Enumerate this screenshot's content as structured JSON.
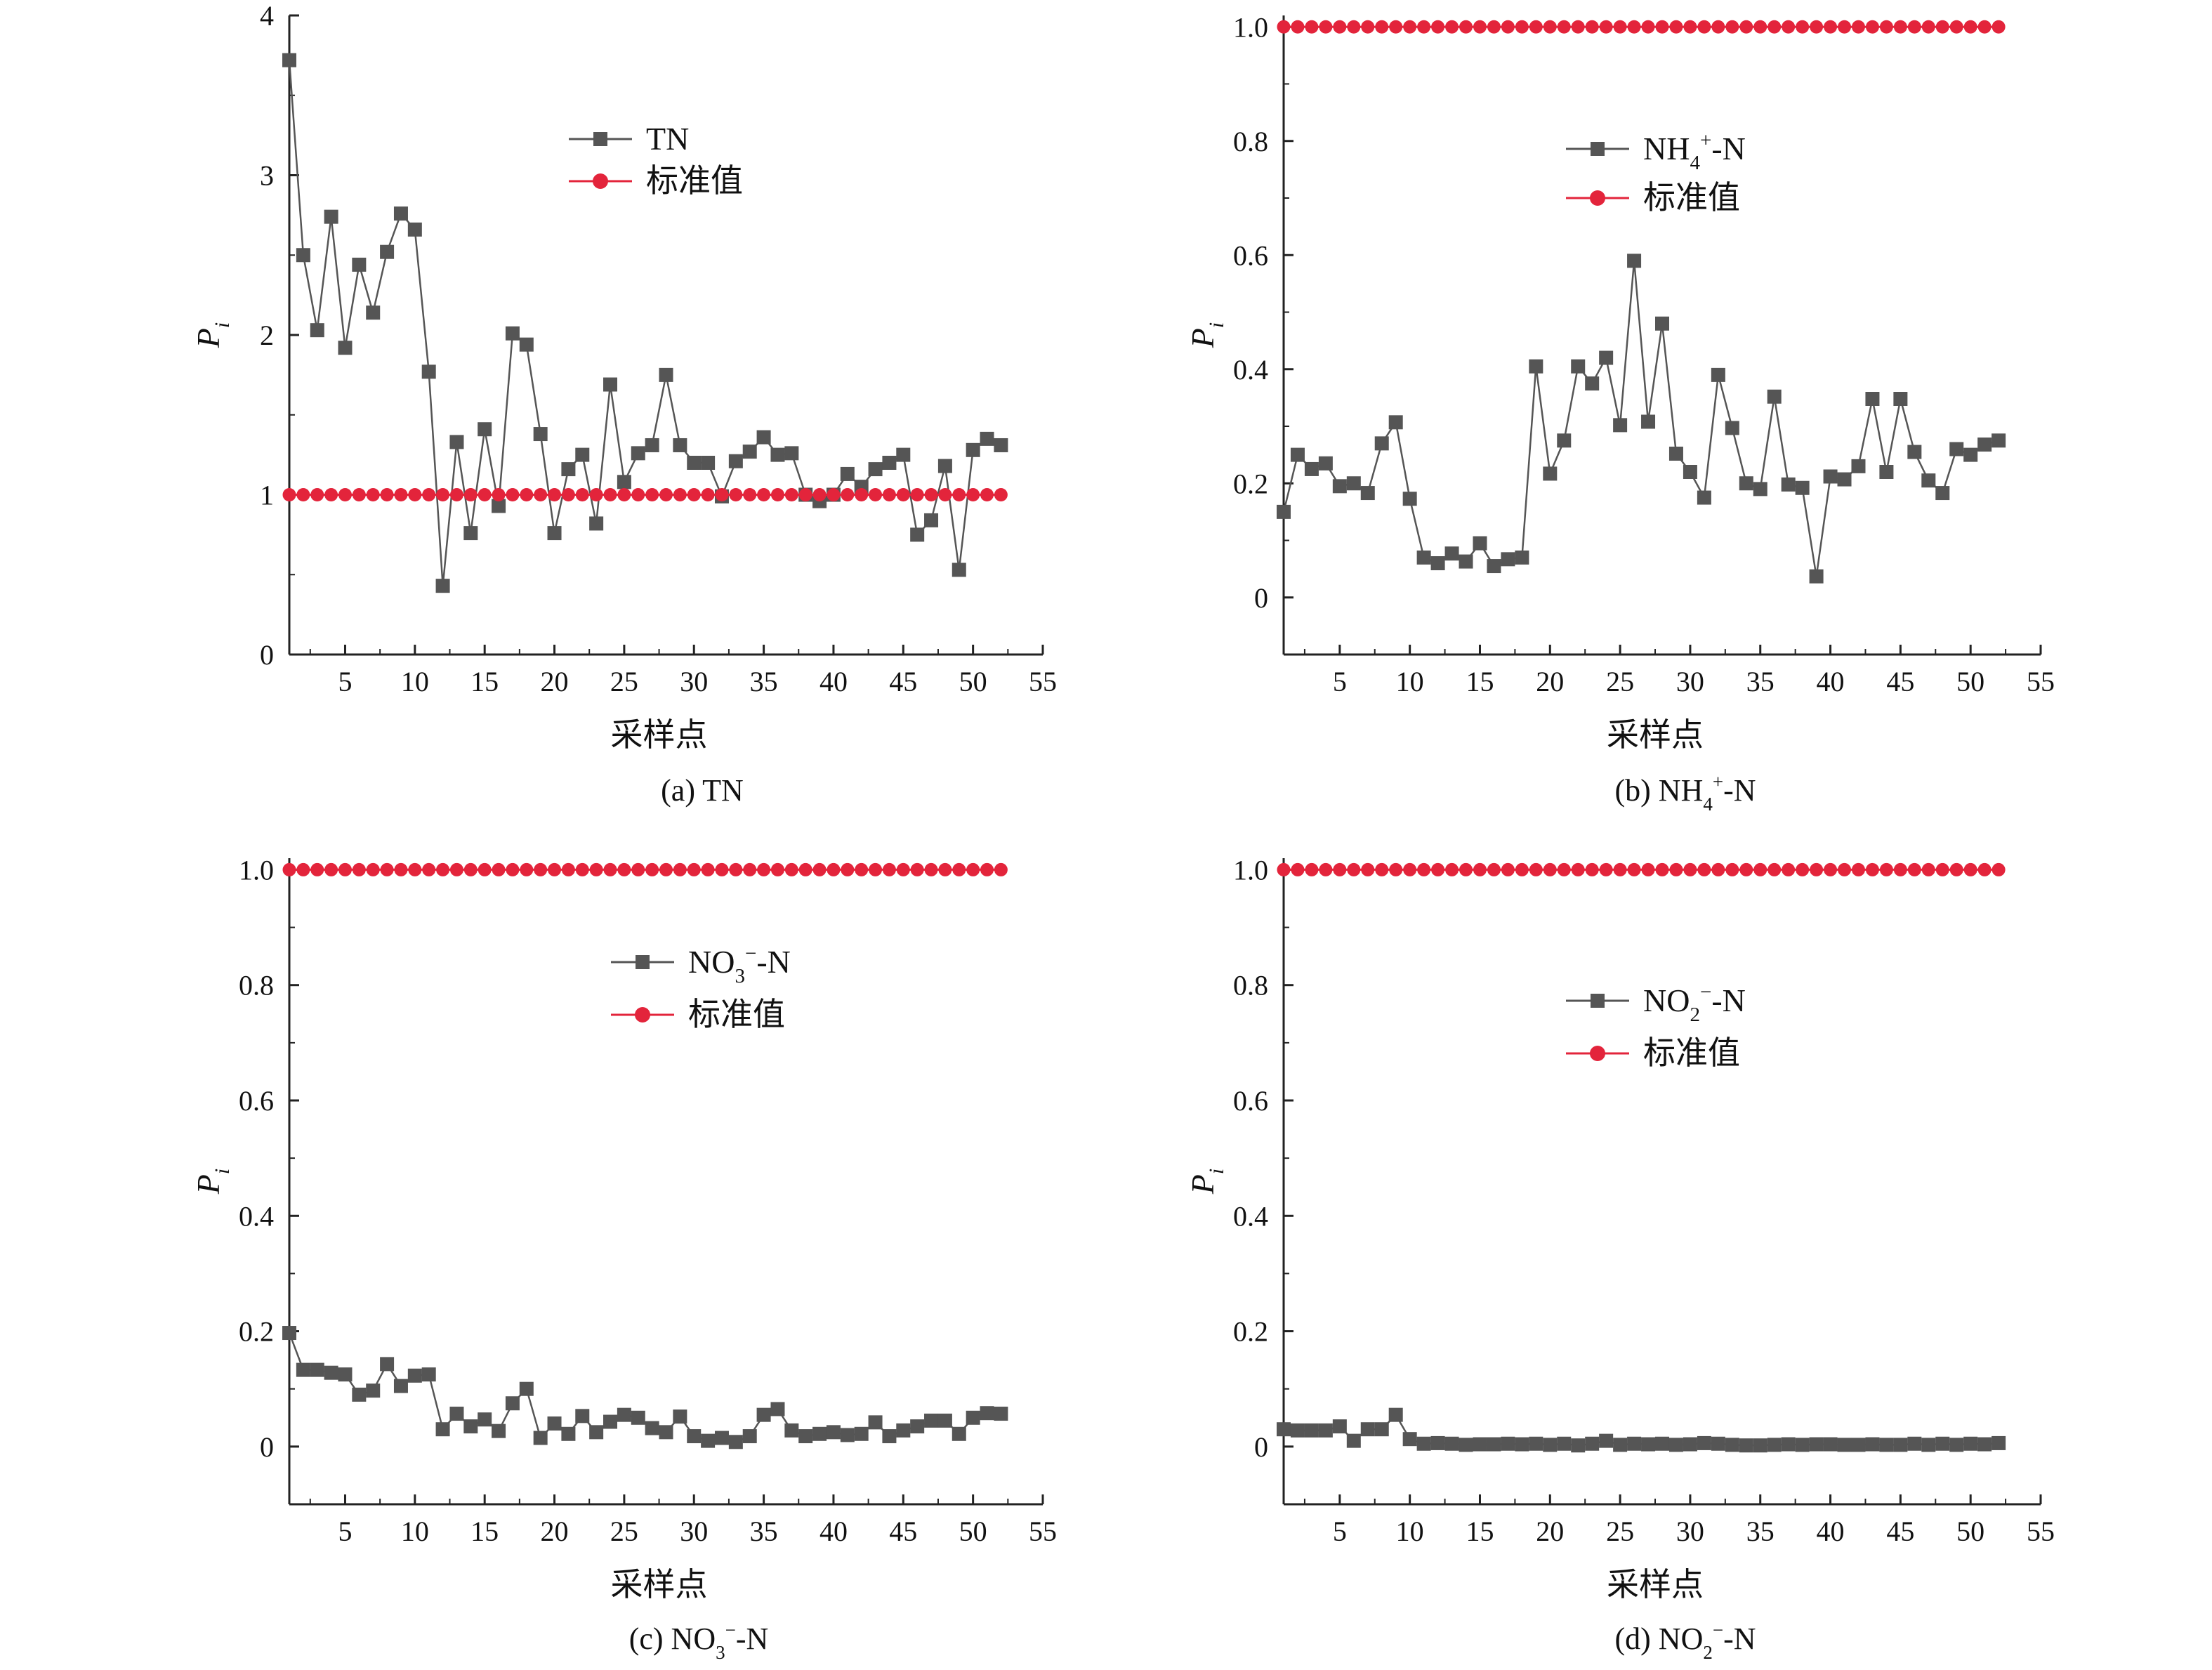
{
  "figure": {
    "series_colors": {
      "measured": "#555555",
      "standard": "#e3243b"
    }
  },
  "chart_data": [
    {
      "type": "line",
      "panel": "a",
      "caption": "(a) TN",
      "xlabel": "采样点",
      "ylabel": "P",
      "ylabel_sub": "i",
      "xlim": [
        1,
        55
      ],
      "ylim": [
        0,
        4
      ],
      "xticks": [
        5,
        10,
        15,
        20,
        25,
        30,
        35,
        40,
        45,
        50,
        55
      ],
      "yticks": [
        0,
        1,
        2,
        3,
        4
      ],
      "ytick_labels": [
        "0",
        "1",
        "2",
        "3",
        "4"
      ],
      "legend": {
        "placement": "top-center"
      },
      "series": [
        {
          "name": "TN",
          "name_parts": [
            "TN"
          ],
          "marker": "square",
          "x": [
            1,
            2,
            3,
            4,
            5,
            6,
            7,
            8,
            9,
            10,
            11,
            12,
            13,
            14,
            15,
            16,
            17,
            18,
            19,
            20,
            21,
            22,
            23,
            24,
            25,
            26,
            27,
            28,
            29,
            30,
            31,
            32,
            33,
            34,
            35,
            36,
            37,
            38,
            39,
            40,
            41,
            42,
            43,
            44,
            45,
            46,
            47,
            48,
            49,
            50,
            51,
            52
          ],
          "values": [
            3.72,
            2.5,
            2.03,
            2.74,
            1.92,
            2.44,
            2.14,
            2.52,
            2.76,
            2.66,
            1.77,
            0.43,
            1.33,
            0.76,
            1.41,
            0.93,
            2.01,
            1.94,
            1.38,
            0.76,
            1.16,
            1.25,
            0.82,
            1.69,
            1.08,
            1.26,
            1.31,
            1.75,
            1.31,
            1.2,
            1.2,
            0.99,
            1.21,
            1.27,
            1.36,
            1.25,
            1.26,
            1.0,
            0.96,
            1.0,
            1.13,
            1.05,
            1.16,
            1.2,
            1.25,
            0.75,
            0.84,
            1.18,
            0.53,
            1.28,
            1.35,
            1.31
          ]
        },
        {
          "name": "标准值",
          "name_parts": [
            "标准值"
          ],
          "marker": "circle",
          "x": [
            1,
            2,
            3,
            4,
            5,
            6,
            7,
            8,
            9,
            10,
            11,
            12,
            13,
            14,
            15,
            16,
            17,
            18,
            19,
            20,
            21,
            22,
            23,
            24,
            25,
            26,
            27,
            28,
            29,
            30,
            31,
            32,
            33,
            34,
            35,
            36,
            37,
            38,
            39,
            40,
            41,
            42,
            43,
            44,
            45,
            46,
            47,
            48,
            49,
            50,
            51,
            52
          ],
          "values": [
            1,
            1,
            1,
            1,
            1,
            1,
            1,
            1,
            1,
            1,
            1,
            1,
            1,
            1,
            1,
            1,
            1,
            1,
            1,
            1,
            1,
            1,
            1,
            1,
            1,
            1,
            1,
            1,
            1,
            1,
            1,
            1,
            1,
            1,
            1,
            1,
            1,
            1,
            1,
            1,
            1,
            1,
            1,
            1,
            1,
            1,
            1,
            1,
            1,
            1,
            1,
            1
          ]
        }
      ]
    },
    {
      "type": "line",
      "panel": "b",
      "caption": "(b) NH4+-N",
      "caption_parts": [
        "(b) NH",
        "4",
        "+",
        "-N"
      ],
      "xlabel": "采样点",
      "ylabel": "P",
      "ylabel_sub": "i",
      "xlim": [
        1,
        55
      ],
      "ylim": [
        -0.1,
        1.02
      ],
      "xticks": [
        5,
        10,
        15,
        20,
        25,
        30,
        35,
        40,
        45,
        50,
        55
      ],
      "yticks": [
        0,
        0.2,
        0.4,
        0.6,
        0.8,
        1.0
      ],
      "ytick_labels": [
        "0",
        "0.2",
        "0.4",
        "0.6",
        "0.8",
        "1.0"
      ],
      "legend": {
        "placement": "top-center"
      },
      "series": [
        {
          "name": "NH4+-N",
          "name_parts": [
            "NH",
            "4",
            "+",
            "-N"
          ],
          "marker": "square",
          "x": [
            1,
            2,
            3,
            4,
            5,
            6,
            7,
            8,
            9,
            10,
            11,
            12,
            13,
            14,
            15,
            16,
            17,
            18,
            19,
            20,
            21,
            22,
            23,
            24,
            25,
            26,
            27,
            28,
            29,
            30,
            31,
            32,
            33,
            34,
            35,
            36,
            37,
            38,
            39,
            40,
            41,
            42,
            43,
            44,
            45,
            46,
            47,
            48,
            49,
            50,
            51,
            52
          ],
          "values": [
            0.15,
            0.25,
            0.225,
            0.235,
            0.195,
            0.2,
            0.183,
            0.27,
            0.307,
            0.173,
            0.07,
            0.06,
            0.077,
            0.063,
            0.095,
            0.055,
            0.067,
            0.07,
            0.405,
            0.217,
            0.275,
            0.405,
            0.375,
            0.42,
            0.302,
            0.59,
            0.308,
            0.48,
            0.252,
            0.22,
            0.175,
            0.39,
            0.297,
            0.2,
            0.19,
            0.352,
            0.198,
            0.192,
            0.037,
            0.212,
            0.207,
            0.23,
            0.348,
            0.22,
            0.348,
            0.255,
            0.205,
            0.183,
            0.26,
            0.25,
            0.268,
            0.275
          ]
        },
        {
          "name": "标准值",
          "name_parts": [
            "标准值"
          ],
          "marker": "circle",
          "x": [
            1,
            2,
            3,
            4,
            5,
            6,
            7,
            8,
            9,
            10,
            11,
            12,
            13,
            14,
            15,
            16,
            17,
            18,
            19,
            20,
            21,
            22,
            23,
            24,
            25,
            26,
            27,
            28,
            29,
            30,
            31,
            32,
            33,
            34,
            35,
            36,
            37,
            38,
            39,
            40,
            41,
            42,
            43,
            44,
            45,
            46,
            47,
            48,
            49,
            50,
            51,
            52
          ],
          "values": [
            1,
            1,
            1,
            1,
            1,
            1,
            1,
            1,
            1,
            1,
            1,
            1,
            1,
            1,
            1,
            1,
            1,
            1,
            1,
            1,
            1,
            1,
            1,
            1,
            1,
            1,
            1,
            1,
            1,
            1,
            1,
            1,
            1,
            1,
            1,
            1,
            1,
            1,
            1,
            1,
            1,
            1,
            1,
            1,
            1,
            1,
            1,
            1,
            1,
            1,
            1,
            1
          ]
        }
      ]
    },
    {
      "type": "line",
      "panel": "c",
      "caption": "(c) NO3−-N",
      "caption_parts": [
        "(c) NO",
        "3",
        "−",
        "-N"
      ],
      "xlabel": "采样点",
      "ylabel": "P",
      "ylabel_sub": "i",
      "xlim": [
        1,
        55
      ],
      "ylim": [
        -0.1,
        1.02
      ],
      "xticks": [
        5,
        10,
        15,
        20,
        25,
        30,
        35,
        40,
        45,
        50,
        55
      ],
      "yticks": [
        0,
        0.2,
        0.4,
        0.6,
        0.8,
        1.0
      ],
      "ytick_labels": [
        "0",
        "0.2",
        "0.4",
        "0.6",
        "0.8",
        "1.0"
      ],
      "legend": {
        "placement": "top-center"
      },
      "series": [
        {
          "name": "NO3−-N",
          "name_parts": [
            "NO",
            "3",
            "−",
            "-N"
          ],
          "marker": "square",
          "x": [
            1,
            2,
            3,
            4,
            5,
            6,
            7,
            8,
            9,
            10,
            11,
            12,
            13,
            14,
            15,
            16,
            17,
            18,
            19,
            20,
            21,
            22,
            23,
            24,
            25,
            26,
            27,
            28,
            29,
            30,
            31,
            32,
            33,
            34,
            35,
            36,
            37,
            38,
            39,
            40,
            41,
            42,
            43,
            44,
            45,
            46,
            47,
            48,
            49,
            50,
            51,
            52
          ],
          "values": [
            0.197,
            0.133,
            0.133,
            0.128,
            0.125,
            0.09,
            0.097,
            0.143,
            0.105,
            0.123,
            0.125,
            0.03,
            0.057,
            0.035,
            0.047,
            0.027,
            0.075,
            0.1,
            0.015,
            0.04,
            0.022,
            0.053,
            0.025,
            0.043,
            0.055,
            0.05,
            0.032,
            0.025,
            0.052,
            0.018,
            0.01,
            0.015,
            0.008,
            0.018,
            0.055,
            0.065,
            0.028,
            0.018,
            0.022,
            0.025,
            0.02,
            0.022,
            0.042,
            0.018,
            0.028,
            0.035,
            0.045,
            0.045,
            0.022,
            0.05,
            0.058,
            0.057
          ]
        },
        {
          "name": "标准值",
          "name_parts": [
            "标准值"
          ],
          "marker": "circle",
          "x": [
            1,
            2,
            3,
            4,
            5,
            6,
            7,
            8,
            9,
            10,
            11,
            12,
            13,
            14,
            15,
            16,
            17,
            18,
            19,
            20,
            21,
            22,
            23,
            24,
            25,
            26,
            27,
            28,
            29,
            30,
            31,
            32,
            33,
            34,
            35,
            36,
            37,
            38,
            39,
            40,
            41,
            42,
            43,
            44,
            45,
            46,
            47,
            48,
            49,
            50,
            51,
            52
          ],
          "values": [
            1,
            1,
            1,
            1,
            1,
            1,
            1,
            1,
            1,
            1,
            1,
            1,
            1,
            1,
            1,
            1,
            1,
            1,
            1,
            1,
            1,
            1,
            1,
            1,
            1,
            1,
            1,
            1,
            1,
            1,
            1,
            1,
            1,
            1,
            1,
            1,
            1,
            1,
            1,
            1,
            1,
            1,
            1,
            1,
            1,
            1,
            1,
            1,
            1,
            1,
            1,
            1
          ]
        }
      ]
    },
    {
      "type": "line",
      "panel": "d",
      "caption": "(d) NO2−-N",
      "caption_parts": [
        "(d) NO",
        "2",
        "−",
        "-N"
      ],
      "xlabel": "采样点",
      "ylabel": "P",
      "ylabel_sub": "i",
      "xlim": [
        1,
        55
      ],
      "ylim": [
        -0.1,
        1.02
      ],
      "xticks": [
        5,
        10,
        15,
        20,
        25,
        30,
        35,
        40,
        45,
        50,
        55
      ],
      "yticks": [
        0,
        0.2,
        0.4,
        0.6,
        0.8,
        1.0
      ],
      "ytick_labels": [
        "0",
        "0.2",
        "0.4",
        "0.6",
        "0.8",
        "1.0"
      ],
      "legend": {
        "placement": "top-center"
      },
      "series": [
        {
          "name": "NO2−-N",
          "name_parts": [
            "NO",
            "2",
            "−",
            "-N"
          ],
          "marker": "square",
          "x": [
            1,
            2,
            3,
            4,
            5,
            6,
            7,
            8,
            9,
            10,
            11,
            12,
            13,
            14,
            15,
            16,
            17,
            18,
            19,
            20,
            21,
            22,
            23,
            24,
            25,
            26,
            27,
            28,
            29,
            30,
            31,
            32,
            33,
            34,
            35,
            36,
            37,
            38,
            39,
            40,
            41,
            42,
            43,
            44,
            45,
            46,
            47,
            48,
            49,
            50,
            51,
            52
          ],
          "values": [
            0.03,
            0.028,
            0.028,
            0.028,
            0.035,
            0.01,
            0.03,
            0.03,
            0.055,
            0.013,
            0.005,
            0.006,
            0.005,
            0.003,
            0.004,
            0.004,
            0.005,
            0.004,
            0.005,
            0.003,
            0.005,
            0.002,
            0.005,
            0.01,
            0.003,
            0.005,
            0.004,
            0.005,
            0.003,
            0.004,
            0.006,
            0.005,
            0.003,
            0.002,
            0.002,
            0.003,
            0.004,
            0.003,
            0.004,
            0.004,
            0.003,
            0.003,
            0.004,
            0.003,
            0.003,
            0.005,
            0.003,
            0.005,
            0.003,
            0.005,
            0.004,
            0.006
          ]
        },
        {
          "name": "标准值",
          "name_parts": [
            "标准值"
          ],
          "marker": "circle",
          "x": [
            1,
            2,
            3,
            4,
            5,
            6,
            7,
            8,
            9,
            10,
            11,
            12,
            13,
            14,
            15,
            16,
            17,
            18,
            19,
            20,
            21,
            22,
            23,
            24,
            25,
            26,
            27,
            28,
            29,
            30,
            31,
            32,
            33,
            34,
            35,
            36,
            37,
            38,
            39,
            40,
            41,
            42,
            43,
            44,
            45,
            46,
            47,
            48,
            49,
            50,
            51,
            52
          ],
          "values": [
            1,
            1,
            1,
            1,
            1,
            1,
            1,
            1,
            1,
            1,
            1,
            1,
            1,
            1,
            1,
            1,
            1,
            1,
            1,
            1,
            1,
            1,
            1,
            1,
            1,
            1,
            1,
            1,
            1,
            1,
            1,
            1,
            1,
            1,
            1,
            1,
            1,
            1,
            1,
            1,
            1,
            1,
            1,
            1,
            1,
            1,
            1,
            1,
            1,
            1,
            1,
            1
          ]
        }
      ]
    }
  ]
}
